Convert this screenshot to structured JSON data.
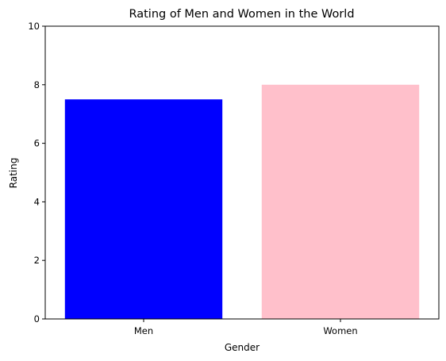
{
  "chart_data": {
    "type": "bar",
    "title": "Rating of Men and Women in the World",
    "xlabel": "Gender",
    "ylabel": "Rating",
    "categories": [
      "Men",
      "Women"
    ],
    "values": [
      7.5,
      8
    ],
    "colors": [
      "#0000ff",
      "#ffc0cb"
    ],
    "ylim": [
      0,
      10
    ],
    "yticks": [
      "0",
      "2",
      "4",
      "6",
      "8",
      "10"
    ],
    "grid": false,
    "legend": "none"
  }
}
